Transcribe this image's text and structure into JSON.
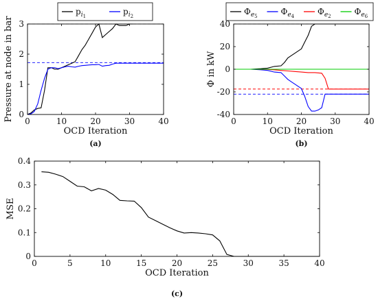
{
  "chart_data": [
    {
      "id": "a",
      "type": "line",
      "caption": "(a)",
      "xlabel": "OCD Iteration",
      "ylabel": "Pressure at node in bar",
      "xlim": [
        0,
        40
      ],
      "ylim": [
        0,
        3
      ],
      "xticks": [
        0,
        10,
        20,
        30,
        40
      ],
      "yticks": [
        0,
        1,
        2,
        3
      ],
      "grid": false,
      "legend_position": "top",
      "series": [
        {
          "name": "p",
          "name_sub": "i",
          "name_subsub": "1",
          "color": "#000000",
          "x": [
            0,
            1,
            2,
            3,
            4,
            5,
            6,
            7,
            8,
            9,
            10,
            11,
            12,
            13,
            14,
            15,
            16,
            17,
            18,
            19,
            20,
            21,
            22,
            23,
            24,
            25,
            26,
            27,
            28,
            29,
            30,
            31
          ],
          "y": [
            0,
            0.05,
            0.15,
            0.2,
            0.22,
            0.8,
            1.55,
            1.55,
            1.5,
            1.5,
            1.55,
            1.6,
            1.65,
            1.7,
            1.75,
            1.95,
            2.15,
            2.3,
            2.5,
            2.7,
            2.9,
            3.0,
            2.55,
            2.65,
            2.75,
            2.85,
            3.0,
            2.95,
            2.95,
            2.95,
            3.0,
            3.0
          ]
        },
        {
          "name": "p",
          "name_sub": "i",
          "name_subsub": "2",
          "color": "#0000ff",
          "x": [
            0,
            1,
            2,
            3,
            4,
            5,
            6,
            7,
            8,
            9,
            10,
            11,
            12,
            13,
            14,
            15,
            16,
            17,
            18,
            19,
            20,
            21,
            22,
            23,
            24,
            25,
            26,
            27,
            28,
            29,
            30,
            31,
            40
          ],
          "y": [
            0,
            0.02,
            0.1,
            0.35,
            0.8,
            1.2,
            1.5,
            1.55,
            1.55,
            1.52,
            1.55,
            1.58,
            1.6,
            1.58,
            1.57,
            1.6,
            1.62,
            1.63,
            1.64,
            1.65,
            1.65,
            1.66,
            1.6,
            1.62,
            1.63,
            1.67,
            1.7,
            1.7,
            1.7,
            1.7,
            1.7,
            1.7,
            1.7
          ]
        }
      ],
      "reference_lines": [
        {
          "y": 3.0,
          "color": "#999999"
        },
        {
          "y": 1.72,
          "color": "#0000ff"
        }
      ]
    },
    {
      "id": "b",
      "type": "line",
      "caption": "(b)",
      "xlabel": "OCD Iteration",
      "ylabel": "Φ in kW",
      "xlim": [
        0,
        40
      ],
      "ylim": [
        -40,
        40
      ],
      "xticks": [
        0,
        10,
        20,
        30,
        40
      ],
      "yticks": [
        -40,
        -20,
        0,
        20,
        40
      ],
      "grid": false,
      "legend_position": "top",
      "series": [
        {
          "name": "Φ",
          "name_sub": "e",
          "name_subsub": "5",
          "color": "#000000",
          "x": [
            0,
            5,
            8,
            10,
            12,
            14,
            15,
            16,
            17,
            18,
            19,
            20,
            21,
            22,
            23,
            24,
            30,
            40
          ],
          "y": [
            0,
            0,
            0.5,
            1,
            2.5,
            3,
            6,
            10,
            12,
            14,
            16,
            18,
            24,
            30,
            38,
            40,
            40,
            40
          ]
        },
        {
          "name": "Φ",
          "name_sub": "e",
          "name_subsub": "4",
          "color": "#0000ff",
          "x": [
            0,
            5,
            8,
            10,
            12,
            14,
            15,
            16,
            17,
            18,
            19,
            20,
            21,
            22,
            23,
            24,
            25,
            26,
            27,
            28,
            29,
            30,
            40
          ],
          "y": [
            0,
            0,
            -0.5,
            -1,
            -2.5,
            -3,
            -6,
            -9,
            -11,
            -13,
            -15,
            -17,
            -24,
            -33,
            -37,
            -37,
            -36,
            -34,
            -22,
            -22,
            -22,
            -22,
            -22
          ]
        },
        {
          "name": "Φ",
          "name_sub": "e",
          "name_subsub": "2",
          "color": "#ff0000",
          "x": [
            0,
            5,
            10,
            12,
            14,
            16,
            18,
            20,
            22,
            24,
            26,
            27,
            28,
            30,
            40
          ],
          "y": [
            0,
            0,
            -0.2,
            -0.5,
            -1,
            -1.5,
            -2,
            -2.5,
            -3,
            -3,
            -3.5,
            -8,
            -17.5,
            -17.5,
            -17.5
          ]
        },
        {
          "name": "Φ",
          "name_sub": "e",
          "name_subsub": "6",
          "color": "#00cc00",
          "x": [
            0,
            40
          ],
          "y": [
            0,
            0
          ]
        }
      ],
      "reference_lines": [
        {
          "y": 40,
          "color": "#999999"
        },
        {
          "y": -17.5,
          "color": "#ff0000"
        },
        {
          "y": -22,
          "color": "#0000ff"
        }
      ]
    },
    {
      "id": "c",
      "type": "line",
      "caption": "(c)",
      "xlabel": "OCD Iteration",
      "ylabel": "MSE",
      "xlim": [
        0,
        40
      ],
      "ylim": [
        0,
        0.4
      ],
      "xticks": [
        0,
        5,
        10,
        15,
        20,
        25,
        30,
        35,
        40
      ],
      "yticks": [
        0,
        0.1,
        0.2,
        0.3,
        0.4
      ],
      "ytick_labels": [
        "0",
        "0.1",
        "0.2",
        "0.3",
        "0.4"
      ],
      "grid": false,
      "series": [
        {
          "color": "#000000",
          "x": [
            1,
            2,
            3,
            4,
            5,
            6,
            7,
            8,
            9,
            10,
            11,
            12,
            13,
            14,
            15,
            16,
            17,
            18,
            19,
            20,
            21,
            22,
            23,
            24,
            25,
            26,
            27,
            28,
            29,
            30,
            31,
            32,
            35,
            40
          ],
          "y": [
            0.355,
            0.353,
            0.345,
            0.335,
            0.315,
            0.295,
            0.292,
            0.275,
            0.285,
            0.278,
            0.26,
            0.235,
            0.233,
            0.232,
            0.205,
            0.165,
            0.15,
            0.135,
            0.12,
            0.107,
            0.098,
            0.1,
            0.098,
            0.095,
            0.09,
            0.065,
            0.008,
            0,
            0,
            0,
            0,
            0,
            0,
            0
          ]
        }
      ]
    }
  ]
}
